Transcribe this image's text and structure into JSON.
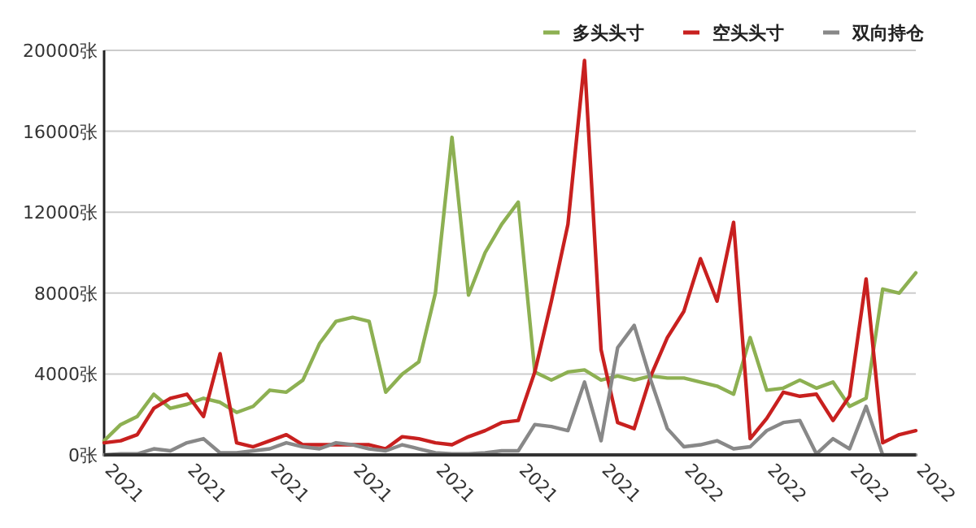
{
  "chart_data": {
    "type": "line",
    "categories": [
      "2021",
      null,
      null,
      null,
      null,
      "2021",
      null,
      null,
      null,
      null,
      "2021",
      null,
      null,
      null,
      null,
      "2021",
      null,
      null,
      null,
      null,
      "2021",
      null,
      null,
      null,
      null,
      "2021",
      null,
      null,
      null,
      null,
      "2021",
      null,
      null,
      null,
      null,
      "2022",
      null,
      null,
      null,
      null,
      "2022",
      null,
      null,
      null,
      null,
      "2022",
      null,
      null,
      null,
      "2022"
    ],
    "series": [
      {
        "name": "多头头寸",
        "color": "#8db052",
        "values": [
          700,
          1500,
          1900,
          3000,
          2300,
          2500,
          2800,
          2600,
          2100,
          2400,
          3200,
          3100,
          3700,
          5500,
          6600,
          6800,
          6600,
          3100,
          4000,
          4600,
          8000,
          15700,
          7900,
          10000,
          11400,
          12500,
          4100,
          3700,
          4100,
          4200,
          3700,
          3900,
          3700,
          3900,
          3800,
          3800,
          3600,
          3400,
          3000,
          5800,
          3200,
          3300,
          3700,
          3300,
          3600,
          2400,
          2800,
          8200,
          8000,
          9000
        ]
      },
      {
        "name": "空头头寸",
        "color": "#c8201f",
        "values": [
          600,
          700,
          1000,
          2300,
          2800,
          3000,
          1900,
          5000,
          600,
          400,
          700,
          1000,
          500,
          500,
          500,
          500,
          500,
          300,
          900,
          800,
          600,
          500,
          900,
          1200,
          1600,
          1700,
          4100,
          7600,
          11400,
          19500,
          5200,
          1600,
          1300,
          3900,
          5800,
          7100,
          9700,
          7600,
          11500,
          800,
          1800,
          3100,
          2900,
          3000,
          1700,
          2900,
          8700,
          600,
          1000,
          1200
        ]
      },
      {
        "name": "双向持仓",
        "color": "#888888",
        "values": [
          0,
          50,
          50,
          300,
          200,
          600,
          800,
          100,
          100,
          200,
          300,
          600,
          400,
          300,
          600,
          500,
          300,
          200,
          500,
          300,
          100,
          50,
          50,
          100,
          200,
          200,
          1500,
          1400,
          1200,
          3600,
          700,
          5300,
          6400,
          3700,
          1300,
          400,
          500,
          700,
          300,
          400,
          1200,
          1600,
          1700,
          50,
          800,
          300,
          2400,
          0,
          0,
          0
        ]
      }
    ],
    "ylim": [
      0,
      20000
    ],
    "yticks": [
      {
        "value": 0,
        "label": "0张"
      },
      {
        "value": 4000,
        "label": "4000张"
      },
      {
        "value": 8000,
        "label": "8000张"
      },
      {
        "value": 12000,
        "label": "12000张"
      },
      {
        "value": 16000,
        "label": "16000张"
      },
      {
        "value": 20000,
        "label": "20000张"
      }
    ],
    "grid": "y",
    "legend": "top right",
    "marker": "none",
    "line_style": "solid"
  }
}
